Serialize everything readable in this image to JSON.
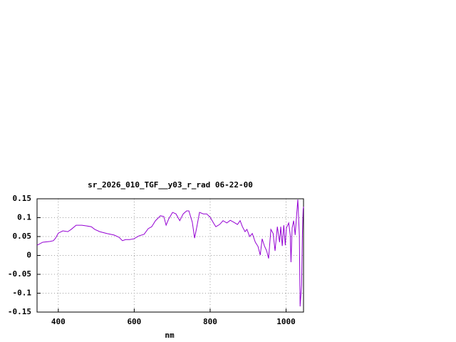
{
  "chart_data": {
    "type": "line",
    "title": "sr_2026_010_TGF__y03_r_rad 06-22-00",
    "xlabel": "nm",
    "x": [
      344,
      359,
      378,
      387,
      393,
      400,
      412,
      425,
      434,
      447,
      462,
      475,
      487,
      496,
      509,
      528,
      547,
      560,
      569,
      577,
      588,
      599,
      613,
      626,
      637,
      646,
      656,
      669,
      678,
      684,
      691,
      701,
      710,
      720,
      729,
      738,
      744,
      753,
      759,
      765,
      772,
      782,
      791,
      800,
      810,
      815,
      825,
      834,
      844,
      853,
      862,
      872,
      879,
      885,
      892,
      897,
      904,
      911,
      919,
      926,
      932,
      937,
      943,
      949,
      954,
      960,
      966,
      971,
      977,
      983,
      986,
      990,
      994,
      998,
      1001,
      1007,
      1011,
      1013,
      1016,
      1020,
      1024,
      1028,
      1031,
      1035,
      1037,
      1041,
      1043,
      1045,
      1046
    ],
    "series": [
      {
        "color": "#9400d3",
        "values": [
          0.027,
          0.035,
          0.037,
          0.039,
          0.046,
          0.059,
          0.065,
          0.063,
          0.069,
          0.08,
          0.08,
          0.078,
          0.076,
          0.069,
          0.063,
          0.058,
          0.054,
          0.048,
          0.039,
          0.042,
          0.042,
          0.044,
          0.052,
          0.056,
          0.071,
          0.076,
          0.092,
          0.105,
          0.103,
          0.08,
          0.097,
          0.114,
          0.11,
          0.092,
          0.11,
          0.118,
          0.118,
          0.088,
          0.046,
          0.076,
          0.114,
          0.11,
          0.11,
          0.101,
          0.084,
          0.076,
          0.082,
          0.092,
          0.086,
          0.093,
          0.088,
          0.082,
          0.092,
          0.076,
          0.063,
          0.069,
          0.05,
          0.058,
          0.035,
          0.024,
          0.001,
          0.044,
          0.025,
          0.012,
          -0.008,
          0.069,
          0.058,
          0.012,
          0.076,
          0.035,
          0.076,
          0.025,
          0.08,
          0.027,
          0.073,
          0.086,
          0.054,
          -0.018,
          0.073,
          0.092,
          0.054,
          0.11,
          0.148,
          0.054,
          -0.135,
          -0.078,
          0.054,
          0.122,
          0.129
        ]
      }
    ],
    "xlim": [
      344,
      1046
    ],
    "ylim": [
      -0.15,
      0.15
    ],
    "xticks": [
      400,
      600,
      800,
      1000
    ],
    "yticks": [
      -0.15,
      -0.1,
      -0.05,
      0,
      0.05,
      0.1,
      0.15
    ],
    "grid": true
  }
}
